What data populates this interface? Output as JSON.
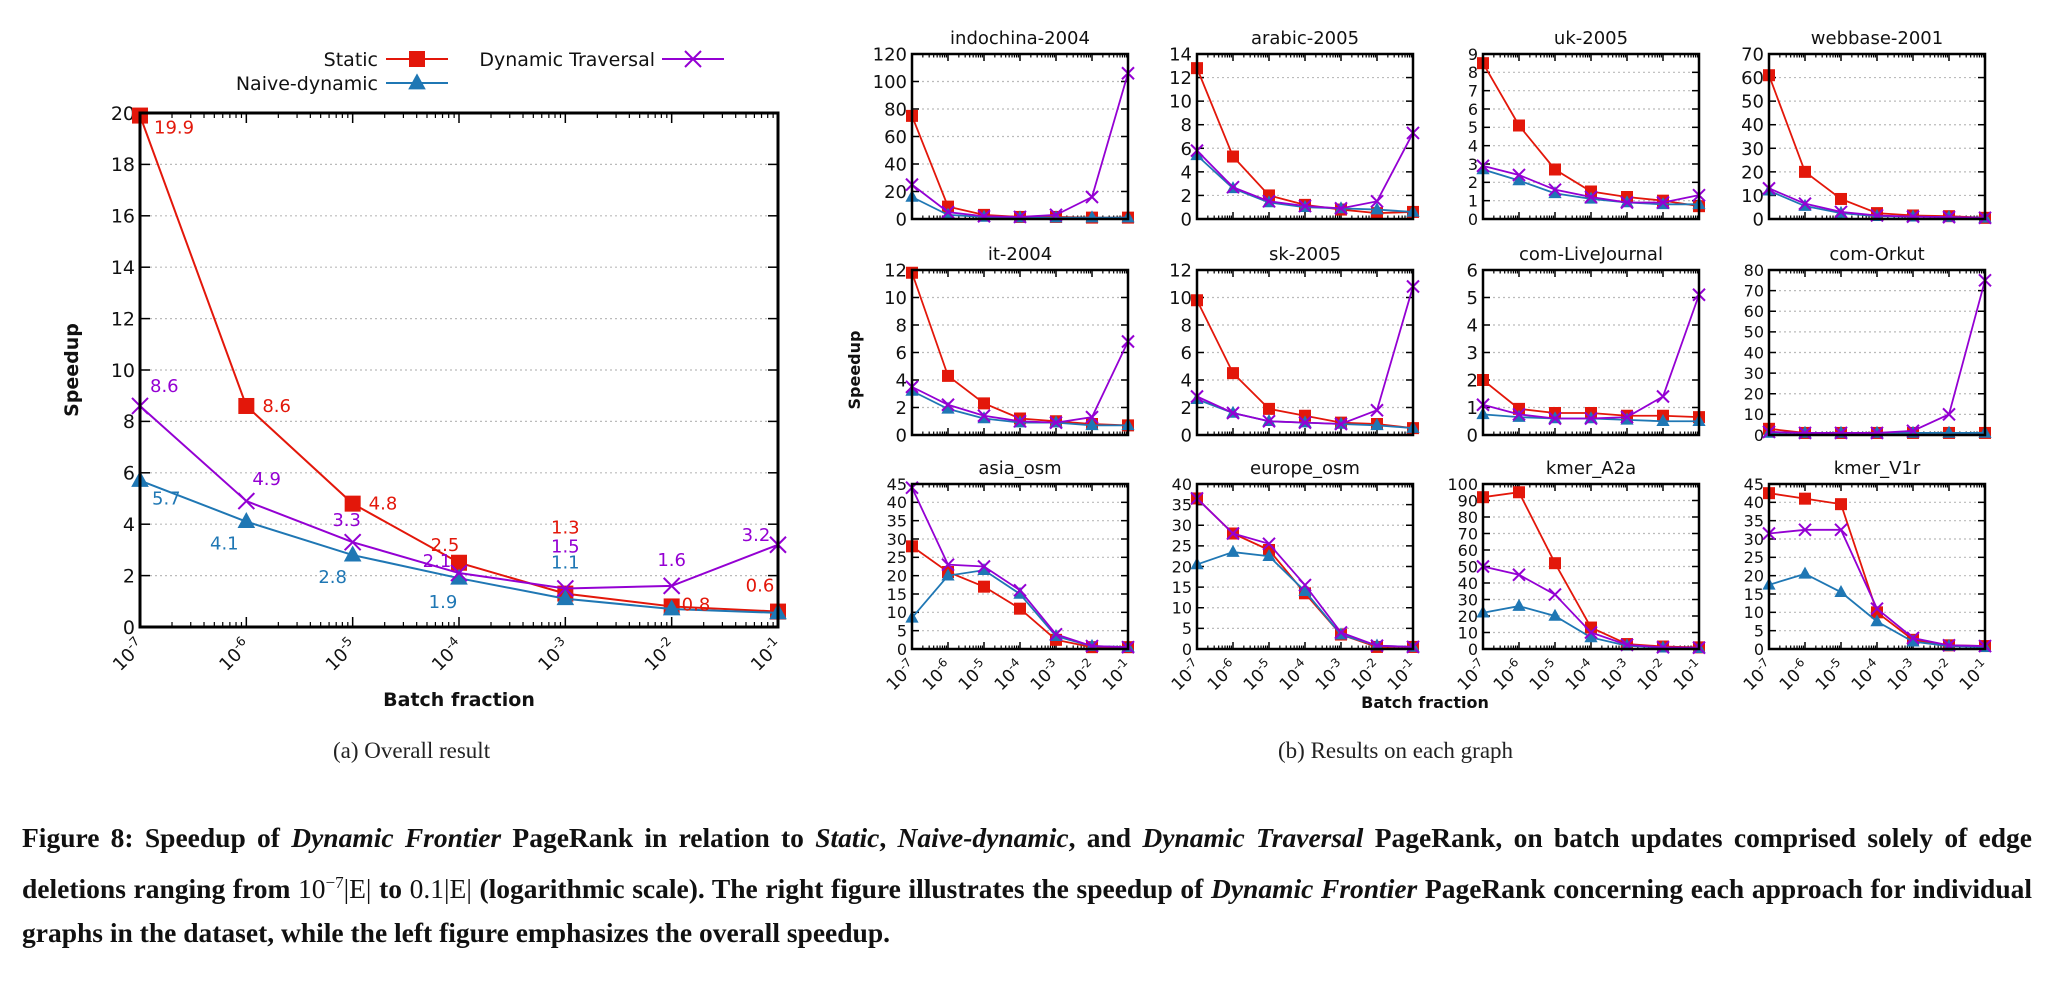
{
  "colors": {
    "static": "#e3170a",
    "naive": "#1f77b4",
    "traversal": "#9400d3",
    "axis": "#000000",
    "grid": "#bbbbbb"
  },
  "legend": {
    "static": "Static",
    "naive": "Naive-dynamic",
    "traversal": "Dynamic Traversal"
  },
  "captions": {
    "a": "(a)  Overall result",
    "b": "(b)  Results on each graph"
  },
  "figure_caption": {
    "prefix": "Figure 8: Speedup of ",
    "t1": "Dynamic Frontier",
    "p2": " PageRank in relation to ",
    "t2": "Static",
    "p3": ", ",
    "t3": "Naive-dynamic",
    "p4": ", and ",
    "t4": "Dynamic Traversal",
    "p5": " PageRank, on batch updates comprised solely of edge deletions ranging from ",
    "m1": "10",
    "m1sup": "−7",
    "m1b": "|E|",
    "p6": " to ",
    "m2": "0.1|E|",
    "p7": " (logarithmic scale). The right figure illustrates the speedup of ",
    "t5": "Dynamic Frontier",
    "p8": " PageRank concerning each approach for individual graphs in the dataset, while the left figure emphasizes the overall speedup."
  },
  "chart_data": [
    {
      "type": "line",
      "id": "overall",
      "title": "",
      "xlabel": "Batch fraction",
      "ylabel": "Speedup",
      "xscale": "log",
      "x": [
        1e-07,
        1e-06,
        1e-05,
        0.0001,
        0.001,
        0.01,
        0.1
      ],
      "xticklabels": [
        "10-7",
        "10-6",
        "10-5",
        "10-4",
        "10-3",
        "10-2",
        "10-1"
      ],
      "ylim": [
        0,
        20
      ],
      "yticks": [
        0,
        2,
        4,
        6,
        8,
        10,
        12,
        14,
        16,
        18,
        20
      ],
      "grid": true,
      "legend_position": "top",
      "series": [
        {
          "name": "Static",
          "key": "static",
          "marker": "square",
          "values": [
            19.9,
            8.6,
            4.8,
            2.5,
            1.3,
            0.8,
            0.6
          ],
          "labels": [
            "19.9",
            "8.6",
            "4.8",
            "2.5",
            "1.3",
            "0.8",
            "0.6"
          ]
        },
        {
          "name": "Naive-dynamic",
          "key": "naive",
          "marker": "triangle",
          "values": [
            5.7,
            4.1,
            2.8,
            1.9,
            1.1,
            0.7,
            0.55
          ],
          "labels": [
            "5.7",
            "4.1",
            "2.8",
            "1.9",
            "1.1",
            "",
            ""
          ]
        },
        {
          "name": "Dynamic Traversal",
          "key": "traversal",
          "marker": "x",
          "values": [
            8.6,
            4.9,
            3.3,
            2.1,
            1.5,
            1.6,
            3.2
          ],
          "labels": [
            "8.6",
            "4.9",
            "3.3",
            "2.1",
            "1.5",
            "1.6",
            "3.2"
          ]
        }
      ]
    },
    {
      "type": "line",
      "id": "per-graph",
      "xlabel": "Batch fraction",
      "ylabel": "Speedup",
      "xscale": "log",
      "x": [
        1e-07,
        1e-06,
        1e-05,
        0.0001,
        0.001,
        0.01,
        0.1
      ],
      "xticklabels": [
        "10-7",
        "10-6",
        "10-5",
        "10-4",
        "10-3",
        "10-2",
        "10-1"
      ],
      "grid": true,
      "panels": [
        {
          "title": "indochina-2004",
          "ylim": [
            0,
            120
          ],
          "yticks": [
            0,
            20,
            40,
            60,
            80,
            100,
            120
          ],
          "static": [
            75,
            9,
            3,
            1.5,
            1.5,
            1,
            1
          ],
          "naive": [
            16,
            3,
            1.5,
            1,
            1,
            1,
            1
          ],
          "traversal": [
            25,
            5,
            2,
            1.5,
            3,
            16,
            106
          ]
        },
        {
          "title": "arabic-2005",
          "ylim": [
            0,
            14
          ],
          "yticks": [
            0,
            2,
            4,
            6,
            8,
            10,
            12,
            14
          ],
          "static": [
            12.8,
            5.3,
            2,
            1.2,
            0.8,
            0.5,
            0.6
          ],
          "naive": [
            5.4,
            2.6,
            1.4,
            1,
            0.9,
            0.8,
            0.6
          ],
          "traversal": [
            5.8,
            2.7,
            1.5,
            1.1,
            0.9,
            1.5,
            7.3
          ]
        },
        {
          "title": "uk-2005",
          "ylim": [
            0,
            9
          ],
          "yticks": [
            0,
            1,
            2,
            3,
            4,
            5,
            6,
            7,
            8,
            9
          ],
          "static": [
            8.5,
            5.1,
            2.7,
            1.5,
            1.2,
            1,
            0.7
          ],
          "naive": [
            2.7,
            2.1,
            1.4,
            1.1,
            0.9,
            0.8,
            0.8
          ],
          "traversal": [
            2.9,
            2.4,
            1.6,
            1.2,
            0.9,
            0.9,
            1.3
          ]
        },
        {
          "title": "webbase-2001",
          "ylim": [
            0,
            70
          ],
          "yticks": [
            0,
            10,
            20,
            30,
            40,
            50,
            60,
            70
          ],
          "static": [
            61,
            20,
            8.5,
            2.5,
            1.5,
            1.2,
            0.5
          ],
          "naive": [
            12,
            5.5,
            2.5,
            1.2,
            1,
            0.8,
            0.5
          ],
          "traversal": [
            13,
            6.5,
            3,
            1.5,
            1,
            0.8,
            0.5
          ]
        },
        {
          "title": "it-2004",
          "ylim": [
            0,
            12
          ],
          "yticks": [
            0,
            2,
            4,
            6,
            8,
            10,
            12
          ],
          "static": [
            11.8,
            4.3,
            2.3,
            1.2,
            1,
            0.8,
            0.7
          ],
          "naive": [
            3.2,
            1.9,
            1.2,
            0.9,
            0.9,
            0.7,
            0.7
          ],
          "traversal": [
            3.5,
            2.2,
            1.4,
            1,
            0.9,
            1.3,
            6.8
          ]
        },
        {
          "title": "sk-2005",
          "ylim": [
            0,
            12
          ],
          "yticks": [
            0,
            2,
            4,
            6,
            8,
            10,
            12
          ],
          "static": [
            9.8,
            4.5,
            1.9,
            1.4,
            0.9,
            0.8,
            0.5
          ],
          "naive": [
            2.6,
            1.6,
            1,
            0.9,
            0.8,
            0.7,
            0.5
          ],
          "traversal": [
            2.8,
            1.6,
            1,
            0.9,
            0.8,
            1.8,
            10.8
          ]
        },
        {
          "title": "com-LiveJournal",
          "ylim": [
            0,
            6
          ],
          "yticks": [
            0,
            1,
            2,
            3,
            4,
            5,
            6
          ],
          "static": [
            2,
            0.95,
            0.8,
            0.8,
            0.7,
            0.7,
            0.65
          ],
          "naive": [
            0.75,
            0.65,
            0.6,
            0.6,
            0.55,
            0.5,
            0.5
          ],
          "traversal": [
            1.1,
            0.75,
            0.6,
            0.6,
            0.65,
            1.4,
            5.1
          ]
        },
        {
          "title": "com-Orkut",
          "ylim": [
            0,
            80
          ],
          "yticks": [
            0,
            10,
            20,
            30,
            40,
            50,
            60,
            70,
            80
          ],
          "static": [
            3,
            1,
            1,
            1,
            1,
            1,
            1
          ],
          "naive": [
            1,
            1,
            1,
            1,
            1,
            1,
            1
          ],
          "traversal": [
            1.5,
            1,
            1,
            1,
            2,
            10,
            75
          ]
        },
        {
          "title": "asia_osm",
          "ylim": [
            0,
            45
          ],
          "yticks": [
            0,
            5,
            10,
            15,
            20,
            25,
            30,
            35,
            40,
            45
          ],
          "static": [
            28,
            21,
            17,
            11,
            2.5,
            0.5,
            0.5
          ],
          "naive": [
            8.5,
            20,
            21.5,
            15,
            3.5,
            0.8,
            0.5
          ],
          "traversal": [
            44,
            23,
            22.5,
            16,
            4,
            0.8,
            0.5
          ]
        },
        {
          "title": "europe_osm",
          "ylim": [
            0,
            40
          ],
          "yticks": [
            0,
            5,
            10,
            15,
            20,
            25,
            30,
            35,
            40
          ],
          "static": [
            36.5,
            28,
            24,
            13.5,
            3.5,
            0.5,
            0.5
          ],
          "naive": [
            20.5,
            23.5,
            22.5,
            14,
            3.5,
            0.8,
            0.5
          ],
          "traversal": [
            36.5,
            28,
            25.5,
            15.5,
            4,
            0.8,
            0.5
          ]
        },
        {
          "title": "kmer_A2a",
          "ylim": [
            0,
            100
          ],
          "yticks": [
            0,
            10,
            20,
            30,
            40,
            50,
            60,
            70,
            80,
            90,
            100
          ],
          "static": [
            92,
            95,
            52,
            13,
            3,
            1.5,
            1
          ],
          "naive": [
            22,
            26,
            20,
            7,
            2,
            0.8,
            0.5
          ],
          "traversal": [
            50,
            45,
            33,
            10,
            2.5,
            1,
            0.8
          ]
        },
        {
          "title": "kmer_V1r",
          "ylim": [
            0,
            45
          ],
          "yticks": [
            0,
            5,
            10,
            15,
            20,
            25,
            30,
            35,
            40,
            45
          ],
          "static": [
            42.5,
            41,
            39.5,
            10,
            2.5,
            1,
            0.8
          ],
          "naive": [
            17.5,
            20.5,
            15.5,
            7.5,
            2,
            0.8,
            0.5
          ],
          "traversal": [
            31.5,
            32.5,
            32.5,
            11,
            3,
            1,
            0.8
          ]
        }
      ]
    }
  ]
}
